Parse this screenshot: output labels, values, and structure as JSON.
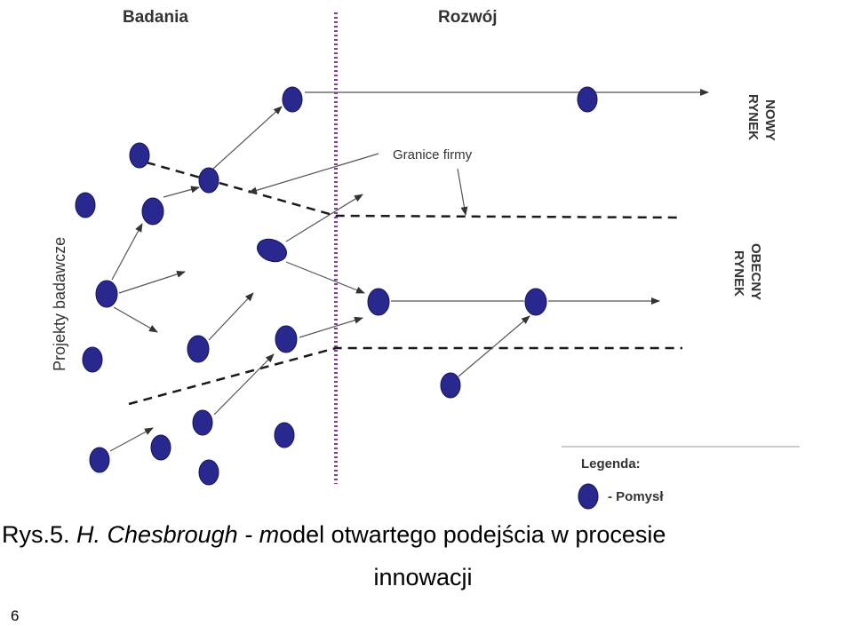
{
  "headers": {
    "left": "Badania",
    "right": "Rozwój"
  },
  "y_label": "Projekty badawcze",
  "boundary_label": "Granice firmy",
  "markets": {
    "new_line1": "NOWY",
    "new_line2": "RYNEK",
    "current_line1": "OBECNY",
    "current_line2": "RYNEK"
  },
  "legend": {
    "title": "Legenda:",
    "item": "- Pomysł"
  },
  "caption": {
    "prefix": "Rys.5. ",
    "italic": "H. Chesbrough - m",
    "rest": "odel otwartego podejścia w procesie",
    "line2": "innowacji"
  },
  "page_number": "6",
  "colors": {
    "node": "#29288f",
    "divider": "#8a3a9a",
    "line": "#222222",
    "arrow": "#555555"
  }
}
